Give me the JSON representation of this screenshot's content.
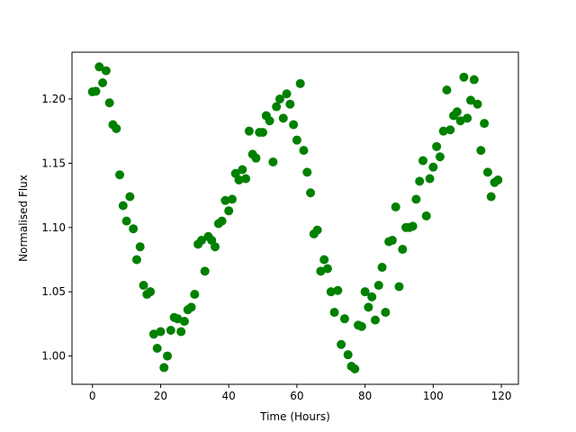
{
  "chart_data": {
    "type": "scatter",
    "xlabel": "Time (Hours)",
    "ylabel": "Normalised Flux",
    "x": [
      0,
      1,
      2,
      3,
      4,
      5,
      6,
      7,
      8,
      9,
      10,
      11,
      12,
      13,
      14,
      15,
      16,
      17,
      18,
      19,
      20,
      21,
      22,
      23,
      24,
      25,
      26,
      27,
      28,
      29,
      30,
      31,
      32,
      33,
      34,
      35,
      36,
      37,
      38,
      39,
      40,
      41,
      42,
      43,
      44,
      45,
      46,
      47,
      48,
      49,
      50,
      51,
      52,
      53,
      54,
      55,
      56,
      57,
      58,
      59,
      60,
      61,
      62,
      63,
      64,
      65,
      66,
      67,
      68,
      69,
      70,
      71,
      72,
      73,
      74,
      75,
      76,
      77,
      78,
      79,
      80,
      81,
      82,
      83,
      84,
      85,
      86,
      87,
      88,
      89,
      90,
      91,
      92,
      93,
      94,
      95,
      96,
      97,
      98,
      99,
      100,
      101,
      102,
      103,
      104,
      105,
      106,
      107,
      108,
      109,
      110,
      111,
      112,
      113,
      114,
      115,
      116,
      117,
      118,
      119
    ],
    "series": [
      {
        "color": "#008000",
        "values": [
          1.2056,
          1.206,
          1.225,
          1.2126,
          1.222,
          1.197,
          1.18,
          1.177,
          1.141,
          1.117,
          1.105,
          1.124,
          1.099,
          1.075,
          1.085,
          1.055,
          1.048,
          1.05,
          1.017,
          1.006,
          1.019,
          0.991,
          1.0,
          1.02,
          1.03,
          1.029,
          1.019,
          1.027,
          1.036,
          1.038,
          1.048,
          1.087,
          1.09,
          1.066,
          1.093,
          1.09,
          1.085,
          1.103,
          1.105,
          1.121,
          1.113,
          1.122,
          1.142,
          1.137,
          1.145,
          1.138,
          1.175,
          1.157,
          1.154,
          1.174,
          1.174,
          1.187,
          1.183,
          1.151,
          1.194,
          1.2,
          1.185,
          1.204,
          1.196,
          1.18,
          1.168,
          1.212,
          1.16,
          1.143,
          1.127,
          1.095,
          1.098,
          1.066,
          1.075,
          1.068,
          1.05,
          1.034,
          1.051,
          1.009,
          1.029,
          1.001,
          0.992,
          0.99,
          1.024,
          1.023,
          1.05,
          1.038,
          1.046,
          1.028,
          1.055,
          1.069,
          1.034,
          1.089,
          1.09,
          1.116,
          1.054,
          1.083,
          1.1,
          1.1,
          1.101,
          1.122,
          1.136,
          1.152,
          1.109,
          1.138,
          1.147,
          1.163,
          1.155,
          1.175,
          1.207,
          1.176,
          1.187,
          1.19,
          1.183,
          1.217,
          1.185,
          1.199,
          1.215,
          1.196,
          1.16,
          1.181,
          1.143,
          1.124,
          1.135,
          1.137
        ]
      }
    ],
    "xlim": [
      -6,
      125
    ],
    "ylim": [
      0.978,
      1.2364
    ],
    "xticks": [
      0,
      20,
      40,
      60,
      80,
      100,
      120
    ],
    "yticks": [
      {
        "value": 1.0,
        "label": "1.00"
      },
      {
        "value": 1.05,
        "label": "1.05"
      },
      {
        "value": 1.1,
        "label": "1.10"
      },
      {
        "value": 1.15,
        "label": "1.15"
      },
      {
        "value": 1.2,
        "label": "1.20"
      }
    ]
  }
}
